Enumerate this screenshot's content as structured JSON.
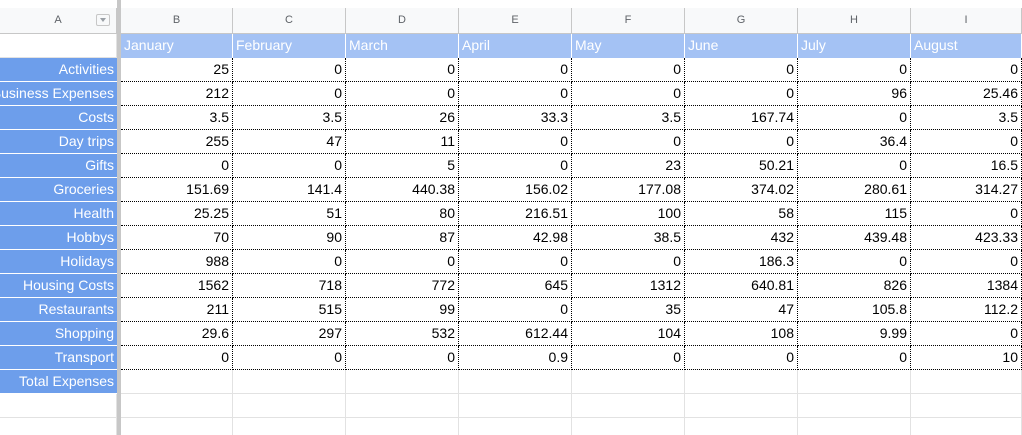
{
  "columns": [
    "A",
    "B",
    "C",
    "D",
    "E",
    "F",
    "G",
    "H",
    "I"
  ],
  "months": [
    "January",
    "February",
    "March",
    "April",
    "May",
    "June",
    "July",
    "August"
  ],
  "rows": [
    {
      "label": "Activities",
      "values": [
        25,
        0,
        0,
        0,
        0,
        0,
        0,
        0
      ]
    },
    {
      "label": "Business Expenses",
      "values": [
        212,
        0,
        0,
        0,
        0,
        0,
        96,
        25.46
      ]
    },
    {
      "label": "Costs",
      "values": [
        3.5,
        3.5,
        26,
        33.3,
        3.5,
        167.74,
        0,
        3.5
      ]
    },
    {
      "label": "Day trips",
      "values": [
        255,
        47,
        11,
        0,
        0,
        0,
        36.4,
        0
      ]
    },
    {
      "label": "Gifts",
      "values": [
        0,
        0,
        5,
        0,
        23,
        50.21,
        0,
        16.5
      ]
    },
    {
      "label": "Groceries",
      "values": [
        151.69,
        141.4,
        440.38,
        156.02,
        177.08,
        374.02,
        280.61,
        314.27
      ]
    },
    {
      "label": "Health",
      "values": [
        25.25,
        51,
        80,
        216.51,
        100,
        58,
        115,
        0
      ]
    },
    {
      "label": "Hobbys",
      "values": [
        70,
        90,
        87,
        42.98,
        38.5,
        432,
        439.48,
        423.33
      ]
    },
    {
      "label": "Holidays",
      "values": [
        988,
        0,
        0,
        0,
        0,
        186.3,
        0,
        0
      ]
    },
    {
      "label": "Housing Costs",
      "values": [
        1562,
        718,
        772,
        645,
        1312,
        640.81,
        826,
        1384
      ]
    },
    {
      "label": "Restaurants",
      "values": [
        211,
        515,
        99,
        0,
        35,
        47,
        105.8,
        112.2
      ]
    },
    {
      "label": "Shopping",
      "values": [
        29.6,
        297,
        532,
        612.44,
        104,
        108,
        9.99,
        0
      ]
    },
    {
      "label": "Transport",
      "values": [
        0,
        0,
        0,
        0.9,
        0,
        0,
        0,
        10
      ]
    },
    {
      "label": "Total Expenses"
    }
  ]
}
